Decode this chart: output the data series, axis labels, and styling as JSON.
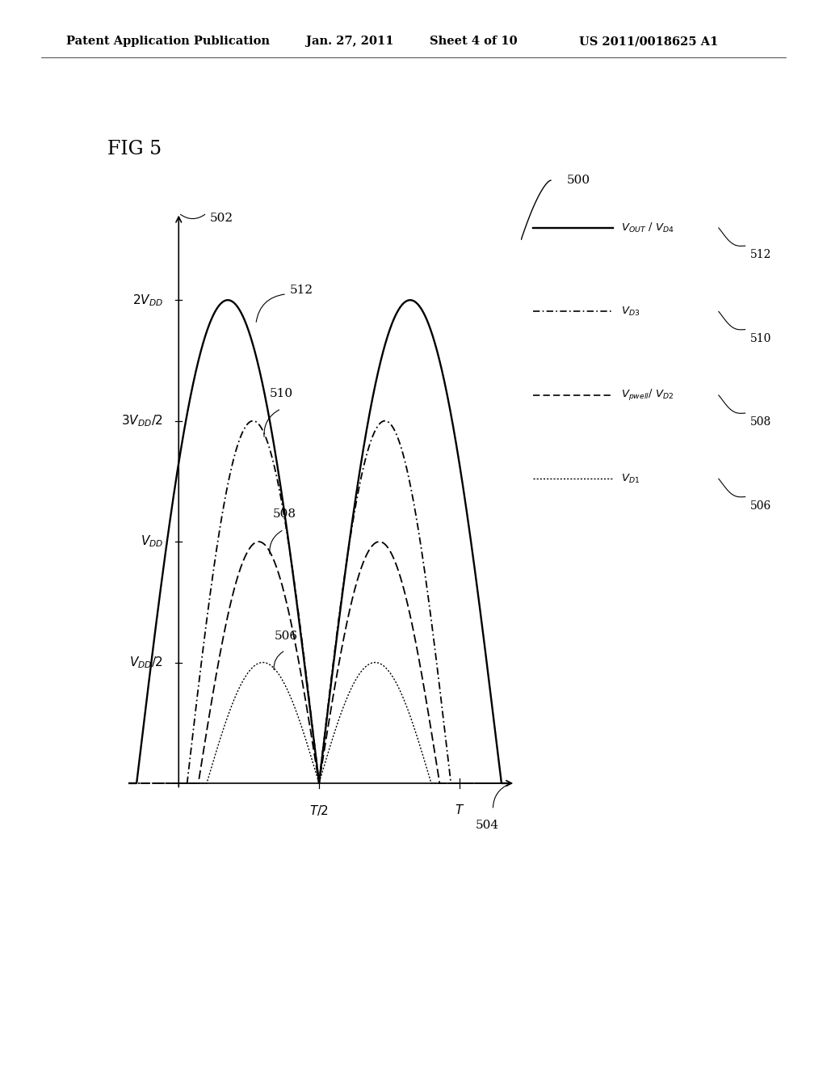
{
  "fig_label": "FIG 5",
  "patent_header": "Patent Application Publication",
  "patent_date": "Jan. 27, 2011",
  "patent_sheet": "Sheet 4 of 10",
  "patent_number": "US 2011/0018625 A1",
  "ref_500": "500",
  "ref_502": "502",
  "ref_504": "504",
  "ref_506": "506",
  "ref_508": "508",
  "ref_510": "510",
  "ref_512": "512",
  "ytick_labels": [
    "2V_{DD}",
    "3V_{DD}/2",
    "V_{DD}",
    "V_{DD}/2"
  ],
  "ytick_vals": [
    4.0,
    3.0,
    2.0,
    1.0
  ],
  "xtick_labels": [
    "T/2",
    "T"
  ],
  "xtick_vals": [
    0.5,
    1.0
  ],
  "background_color": "#ffffff",
  "line_color": "#000000",
  "curve_solid_amp": 4.0,
  "curve_dashd_amp": 3.0,
  "curve_dash_amp": 2.0,
  "curve_dot_amp": 1.0,
  "curve_solid_phase": -0.15,
  "curve_dashd_phase": 0.03,
  "curve_dash_phase": 0.07,
  "curve_dot_phase": 0.1
}
